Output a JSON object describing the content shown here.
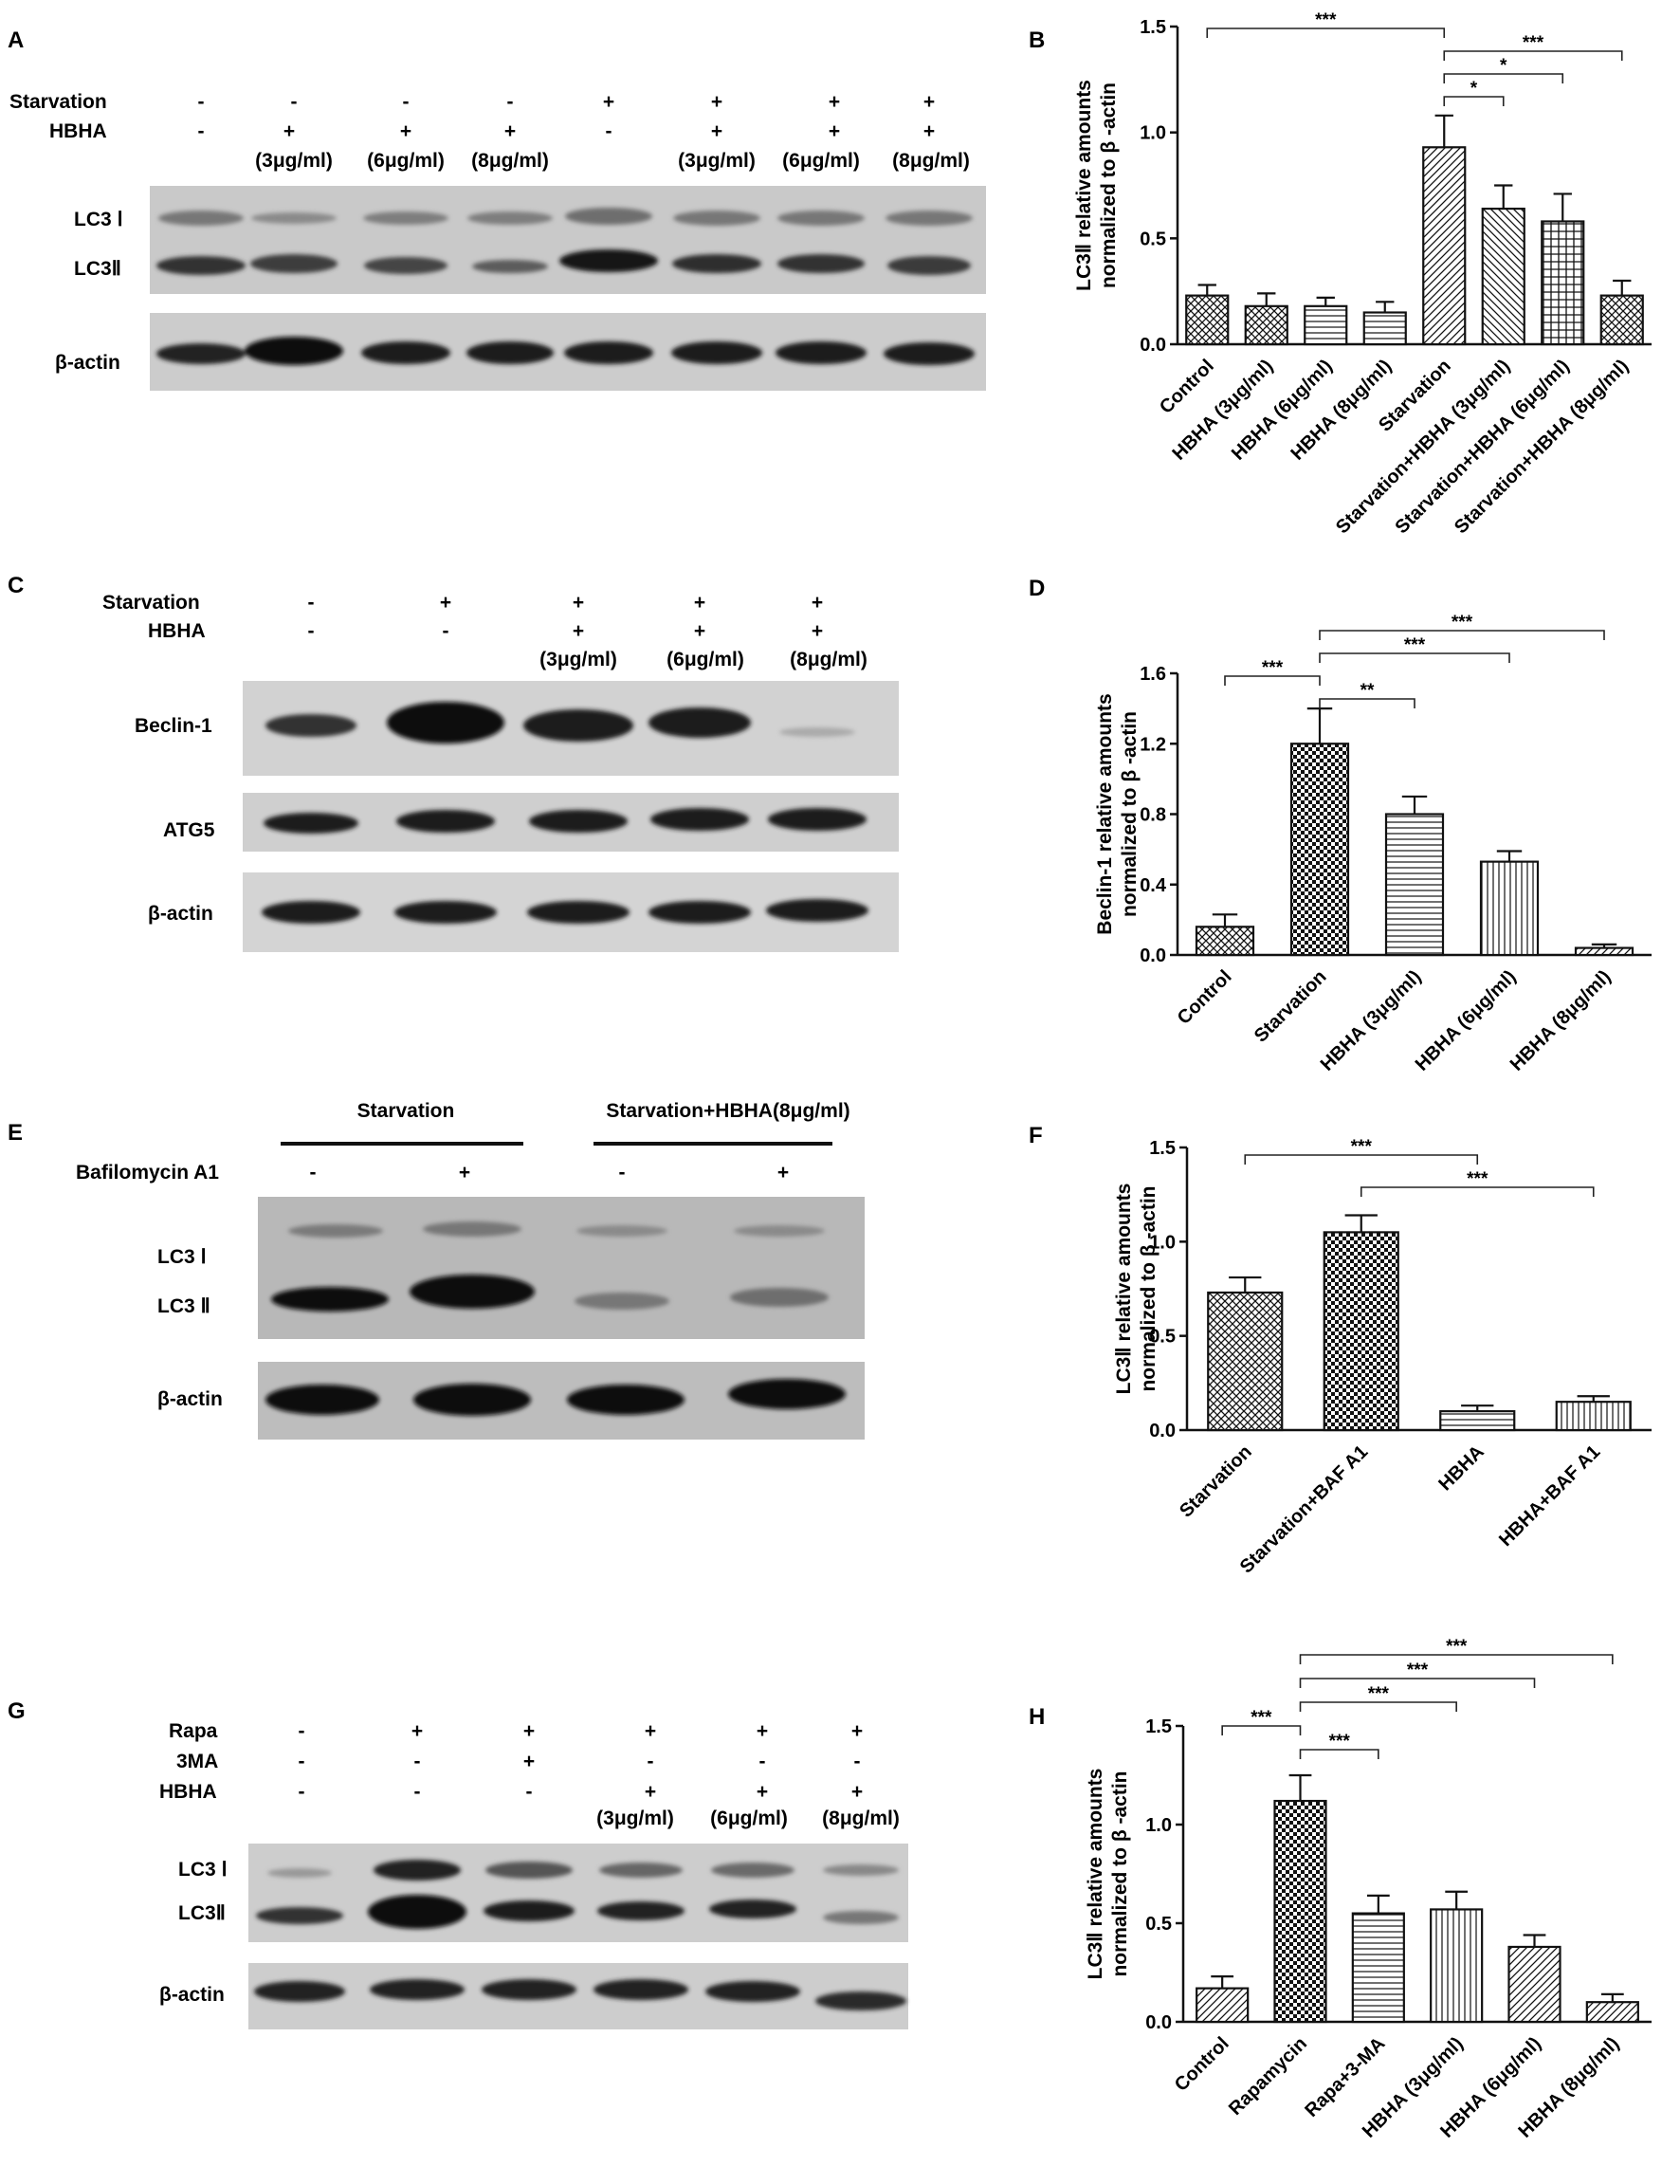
{
  "panels": [
    {
      "id": "A",
      "letter": "A"
    },
    {
      "id": "B",
      "letter": "B"
    },
    {
      "id": "C",
      "letter": "C"
    },
    {
      "id": "D",
      "letter": "D"
    },
    {
      "id": "E",
      "letter": "E"
    },
    {
      "id": "F",
      "letter": "F"
    },
    {
      "id": "G",
      "letter": "G"
    },
    {
      "id": "H",
      "letter": "H"
    }
  ],
  "blots": [
    {
      "panel": "A",
      "conditions": [
        {
          "label": "Starvation",
          "signs": [
            "-",
            "-",
            "-",
            "-",
            "+",
            "+",
            "+",
            "+"
          ]
        },
        {
          "label": "HBHA",
          "signs": [
            "-",
            "+",
            "+",
            "+",
            "-",
            "+",
            "+",
            "+"
          ]
        }
      ],
      "doses": [
        "",
        "(3μg/ml)",
        "(6μg/ml)",
        "(8μg/ml)",
        "",
        "(3μg/ml)",
        "(6μg/ml)",
        "(8μg/ml)"
      ],
      "band_labels": [
        "LC3 Ⅰ",
        "LC3Ⅱ",
        "β-actin"
      ]
    },
    {
      "panel": "C",
      "conditions": [
        {
          "label": "Starvation",
          "signs": [
            "-",
            "+",
            "+",
            "+",
            "+"
          ]
        },
        {
          "label": "HBHA",
          "signs": [
            "-",
            "-",
            "+",
            "+",
            "+"
          ]
        }
      ],
      "doses": [
        "",
        "",
        "(3μg/ml)",
        "(6μg/ml)",
        "(8μg/ml)"
      ],
      "band_labels": [
        "Beclin-1",
        "ATG5",
        "β-actin"
      ]
    },
    {
      "panel": "E",
      "groups": [
        "Starvation",
        "Starvation+HBHA(8μg/ml)"
      ],
      "conditions": [
        {
          "label": "Bafilomycin A1",
          "signs": [
            "-",
            "+",
            "-",
            "+"
          ]
        }
      ],
      "band_labels": [
        "LC3 Ⅰ",
        "LC3 Ⅱ",
        "β-actin"
      ]
    },
    {
      "panel": "G",
      "conditions": [
        {
          "label": "Rapa",
          "signs": [
            "-",
            "+",
            "+",
            "+",
            "+",
            "+"
          ]
        },
        {
          "label": "3MA",
          "signs": [
            "-",
            "-",
            "+",
            "-",
            "-",
            "-"
          ]
        },
        {
          "label": "HBHA",
          "signs": [
            "-",
            "-",
            "-",
            "+",
            "+",
            "+"
          ]
        }
      ],
      "doses": [
        "",
        "",
        "",
        "(3μg/ml)",
        "(6μg/ml)",
        "(8μg/ml)"
      ],
      "band_labels": [
        "LC3 Ⅰ",
        "LC3Ⅱ",
        "β-actin"
      ]
    }
  ],
  "chart_data": [
    {
      "panel": "B",
      "type": "bar",
      "ylabel": [
        "LC3Ⅱ relative amounts",
        "normalized to β -actin"
      ],
      "ylim": [
        0,
        1.5
      ],
      "yticks": [
        "0.0",
        "0.5",
        "1.0",
        "1.5"
      ],
      "categories": [
        "Control",
        "HBHA (3μg/ml)",
        "HBHA (6μg/ml)",
        "HBHA (8μg/ml)",
        "Starvation",
        "Starvation+HBHA (3μg/ml)",
        "Starvation+HBHA (6μg/ml)",
        "Starvation+HBHA (8μg/ml)"
      ],
      "values": [
        0.23,
        0.18,
        0.18,
        0.15,
        0.93,
        0.64,
        0.58,
        0.23
      ],
      "errors": [
        0.05,
        0.06,
        0.04,
        0.05,
        0.15,
        0.11,
        0.13,
        0.07
      ],
      "patterns": [
        "cross",
        "cross",
        "hline",
        "hline",
        "diag",
        "back",
        "grid",
        "cross"
      ],
      "significance": [
        {
          "from": 0,
          "to": 4,
          "label": "***"
        },
        {
          "from": 4,
          "to": 5,
          "label": "*"
        },
        {
          "from": 4,
          "to": 6,
          "label": "*"
        },
        {
          "from": 4,
          "to": 7,
          "label": "***"
        }
      ]
    },
    {
      "panel": "D",
      "type": "bar",
      "ylabel": [
        "Beclin-1 relative amounts",
        "normalized to β -actin"
      ],
      "ylim": [
        0,
        1.6
      ],
      "yticks": [
        "0.0",
        "0.4",
        "0.8",
        "1.2",
        "1.6"
      ],
      "categories": [
        "Control",
        "Starvation",
        "HBHA (3μg/ml)",
        "HBHA (6μg/ml)",
        "HBHA (8μg/ml)"
      ],
      "values": [
        0.16,
        1.2,
        0.8,
        0.53,
        0.04
      ],
      "errors": [
        0.07,
        0.2,
        0.1,
        0.06,
        0.02
      ],
      "patterns": [
        "cross",
        "check",
        "hline",
        "vline",
        "diag"
      ],
      "significance": [
        {
          "from": 0,
          "to": 1,
          "label": "***"
        },
        {
          "from": 1,
          "to": 2,
          "label": "**"
        },
        {
          "from": 1,
          "to": 3,
          "label": "***"
        },
        {
          "from": 1,
          "to": 4,
          "label": "***"
        }
      ]
    },
    {
      "panel": "F",
      "type": "bar",
      "ylabel": [
        "LC3Ⅱ relative amounts",
        "normalized to β -actin"
      ],
      "ylim": [
        0,
        1.5
      ],
      "yticks": [
        "0.0",
        "0.5",
        "1.0",
        "1.5"
      ],
      "categories": [
        "Starvation",
        "Starvation+BAF A1",
        "HBHA",
        "HBHA+BAF A1"
      ],
      "values": [
        0.73,
        1.05,
        0.1,
        0.15
      ],
      "errors": [
        0.08,
        0.09,
        0.03,
        0.03
      ],
      "patterns": [
        "cross",
        "check",
        "hline",
        "vline"
      ],
      "significance": [
        {
          "from": 0,
          "to": 2,
          "label": "***"
        },
        {
          "from": 1,
          "to": 3,
          "label": "***"
        }
      ]
    },
    {
      "panel": "H",
      "type": "bar",
      "ylabel": [
        "LC3Ⅱ relative amounts",
        "normalized to β -actin"
      ],
      "ylim": [
        0,
        1.5
      ],
      "yticks": [
        "0.0",
        "0.5",
        "1.0",
        "1.5"
      ],
      "categories": [
        "Control",
        "Rapamycin",
        "Rapa+3-MA",
        "HBHA (3μg/ml)",
        "HBHA (6μg/ml)",
        "HBHA (8μg/ml)"
      ],
      "values": [
        0.17,
        1.12,
        0.55,
        0.57,
        0.38,
        0.1
      ],
      "errors": [
        0.06,
        0.13,
        0.09,
        0.09,
        0.06,
        0.04
      ],
      "patterns": [
        "diag",
        "check",
        "hline",
        "vline",
        "diag",
        "diag"
      ],
      "significance": [
        {
          "from": 0,
          "to": 1,
          "label": "***"
        },
        {
          "from": 1,
          "to": 2,
          "label": "***"
        },
        {
          "from": 1,
          "to": 3,
          "label": "***"
        },
        {
          "from": 1,
          "to": 4,
          "label": "***"
        },
        {
          "from": 1,
          "to": 5,
          "label": "***"
        }
      ]
    }
  ]
}
